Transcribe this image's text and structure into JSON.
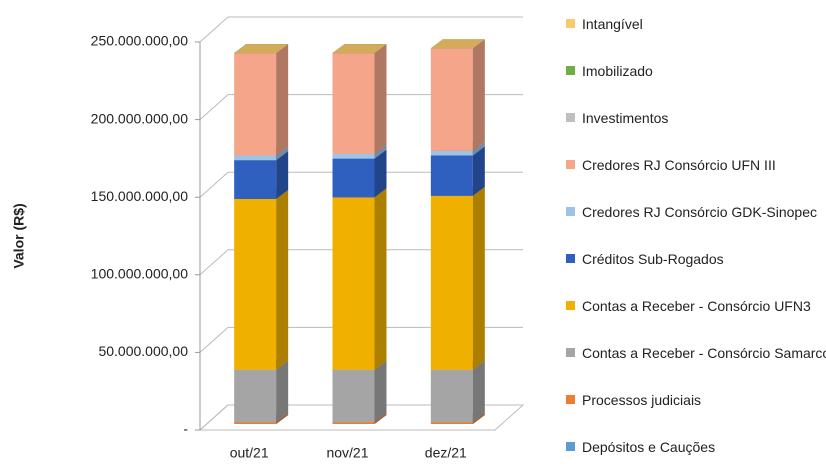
{
  "chart_data": {
    "type": "bar3d_stacked",
    "y_label": "Valor (R$)",
    "categories": [
      "out/21",
      "nov/21",
      "dez/21"
    ],
    "ylim": [
      0,
      250000000
    ],
    "yticks": [
      {
        "value": 0,
        "label": "-"
      },
      {
        "value": 50000000,
        "label": "50.000.000,00"
      },
      {
        "value": 100000000,
        "label": "100.000.000,00"
      },
      {
        "value": 150000000,
        "label": "150.000.000,00"
      },
      {
        "value": 200000000,
        "label": "200.000.000,00"
      },
      {
        "value": 250000000,
        "label": "250.000.000,00"
      }
    ],
    "grid": true,
    "series": [
      {
        "name": "Depósitos e Cauções",
        "color": "#5b9bd5",
        "values": [
          0,
          0,
          0
        ]
      },
      {
        "name": "Processos judiciais",
        "color": "#ed7d31",
        "values": [
          1000000,
          1000000,
          1000000
        ]
      },
      {
        "name": "Contas a Receber - Consórcio Samarco",
        "color": "#a5a5a5",
        "values": [
          34000000,
          34000000,
          34000000
        ]
      },
      {
        "name": "Contas a Receber - Consórcio UFN3",
        "color": "#f0b000",
        "values": [
          110000000,
          111000000,
          112000000
        ]
      },
      {
        "name": "Créditos Sub-Rogados",
        "color": "#2f5fbf",
        "values": [
          25000000,
          25000000,
          26000000
        ]
      },
      {
        "name": "Credores RJ Consórcio GDK-Sinopec",
        "color": "#9dc3e6",
        "values": [
          3000000,
          3000000,
          3000000
        ]
      },
      {
        "name": "Credores RJ Consórcio UFN III",
        "color": "#f4a58a",
        "values": [
          66000000,
          65000000,
          66000000
        ]
      },
      {
        "name": "Investimentos",
        "color": "#bfbfbf",
        "values": [
          0,
          0,
          0
        ]
      },
      {
        "name": "Imobilizado",
        "color": "#70ad47",
        "values": [
          0,
          0,
          0
        ]
      },
      {
        "name": "Intangível",
        "color": "#f9c96b",
        "values": [
          0,
          0,
          0
        ]
      }
    ]
  }
}
